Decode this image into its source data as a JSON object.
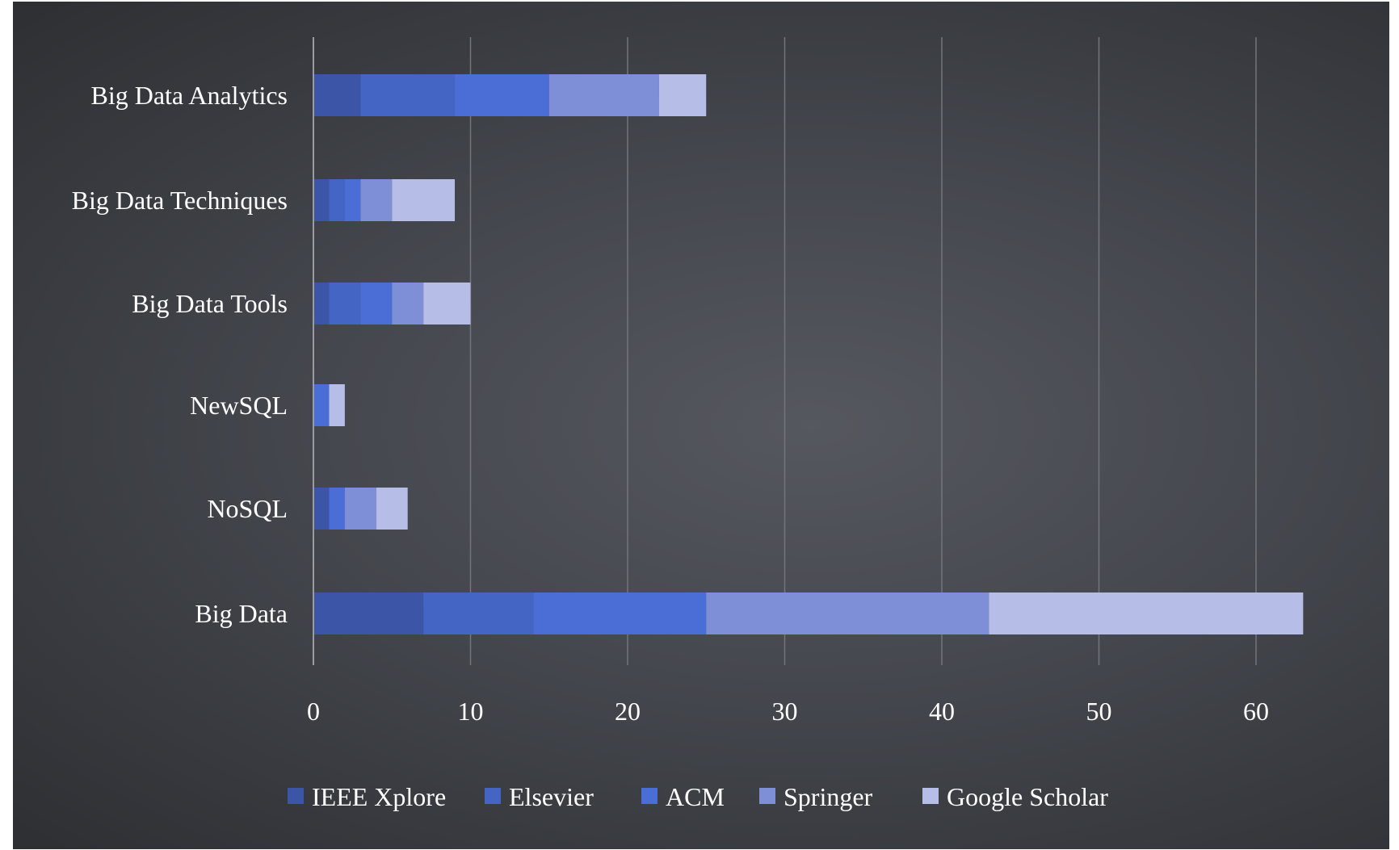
{
  "chart_data": {
    "type": "bar",
    "orientation": "horizontal",
    "stacked": true,
    "title": "",
    "xlabel": "",
    "ylabel": "",
    "categories": [
      "Big Data Analytics",
      "Big Data Techniques",
      "Big Data Tools",
      "NewSQL",
      "NoSQL",
      "Big Data"
    ],
    "series": [
      {
        "name": "IEEE Xplore",
        "color": "#3c55a6",
        "values": [
          3,
          1,
          1,
          0,
          1,
          7
        ]
      },
      {
        "name": "Elsevier",
        "color": "#4465c4",
        "values": [
          6,
          1,
          2,
          0,
          0,
          7
        ]
      },
      {
        "name": "ACM",
        "color": "#4b6ed6",
        "values": [
          6,
          1,
          2,
          1,
          1,
          11
        ]
      },
      {
        "name": "Springer",
        "color": "#7e8fd8",
        "values": [
          7,
          2,
          2,
          0,
          2,
          18
        ]
      },
      {
        "name": "Google Scholar",
        "color": "#b6bde6",
        "values": [
          3,
          4,
          3,
          1,
          2,
          20
        ]
      }
    ],
    "xlim": [
      0,
      63
    ],
    "xticks": [
      "0",
      "10",
      "20",
      "30",
      "40",
      "50",
      "60"
    ],
    "grid": "vertical",
    "legend_position": "bottom"
  }
}
